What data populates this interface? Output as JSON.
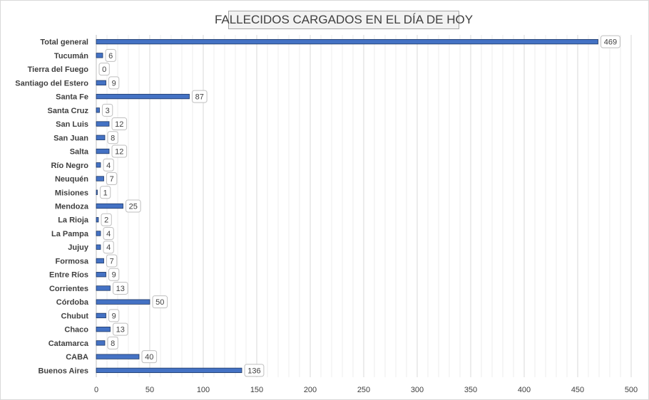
{
  "chart_data": {
    "type": "bar",
    "orientation": "horizontal",
    "title": "FALLECIDOS CARGADOS EN EL DÍA DE HOY",
    "categories": [
      "Total general",
      "Tucumán",
      "Tierra del Fuego",
      "Santiago del Estero",
      "Santa Fe",
      "Santa Cruz",
      "San Luis",
      "San Juan",
      "Salta",
      "Río Negro",
      "Neuquén",
      "Misiones",
      "Mendoza",
      "La Rioja",
      "La Pampa",
      "Jujuy",
      "Formosa",
      "Entre Ríos",
      "Corrientes",
      "Córdoba",
      "Chubut",
      "Chaco",
      "Catamarca",
      "CABA",
      "Buenos Aires"
    ],
    "values": [
      469,
      6,
      0,
      9,
      87,
      3,
      12,
      8,
      12,
      4,
      7,
      1,
      25,
      2,
      4,
      4,
      7,
      9,
      13,
      50,
      9,
      13,
      8,
      40,
      136
    ],
    "xlim": [
      0,
      500
    ],
    "xticks": [
      0,
      50,
      100,
      150,
      200,
      250,
      300,
      350,
      400,
      450,
      500
    ],
    "grid": true,
    "data_labels": true,
    "bar_color": "#4472c4",
    "bar_border_color": "#1f3864"
  }
}
